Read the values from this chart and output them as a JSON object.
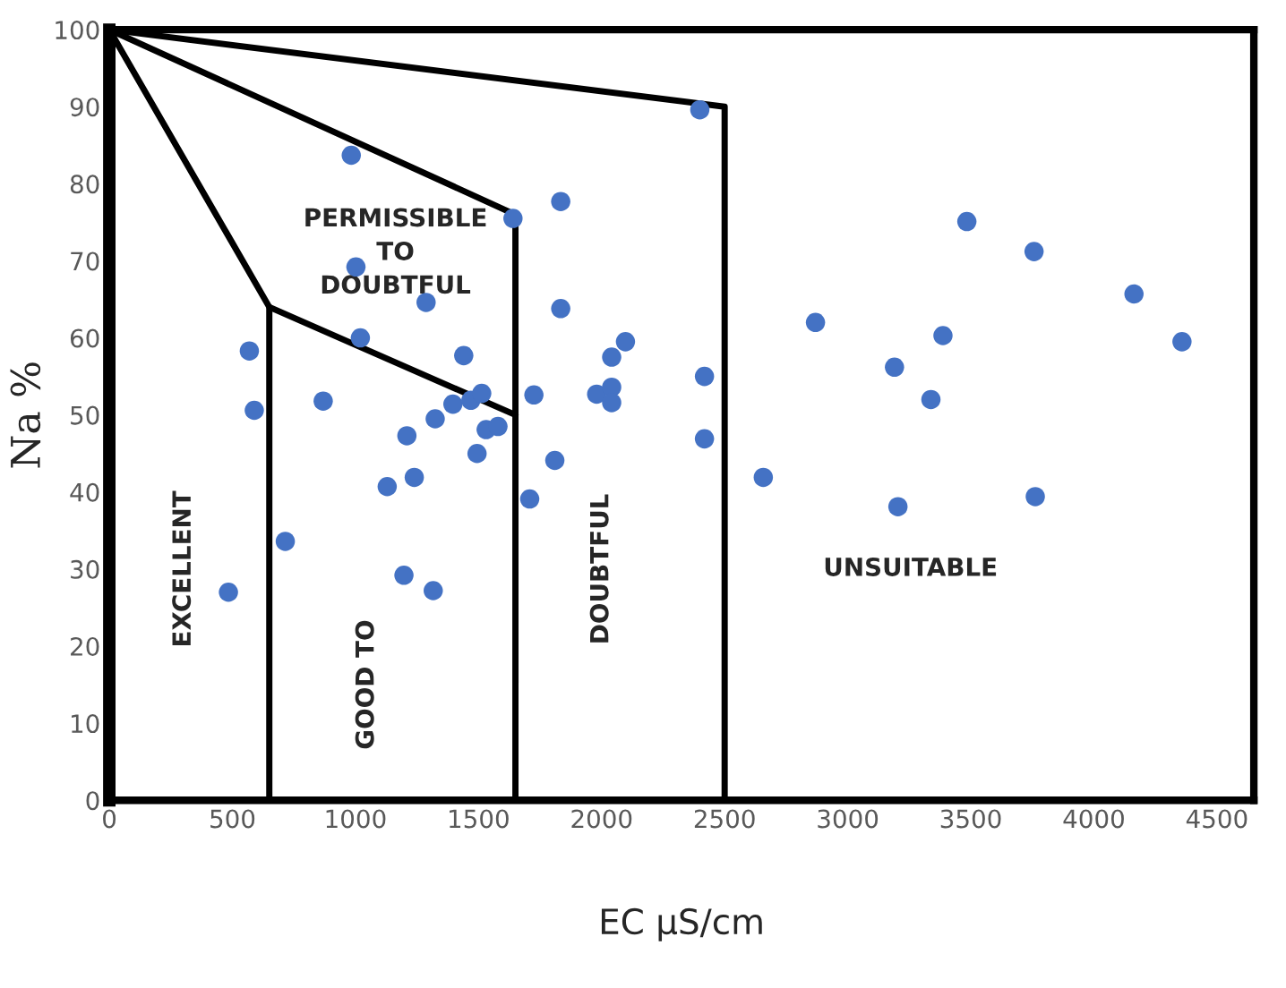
{
  "chart_data": {
    "type": "scatter",
    "xlabel": "EC µS/cm",
    "ylabel": "Na %",
    "xlim": [
      0,
      4650
    ],
    "ylim": [
      0,
      100
    ],
    "xticks": [
      0,
      500,
      1000,
      1500,
      2000,
      2500,
      3000,
      3500,
      4000,
      4500
    ],
    "yticks": [
      0,
      10,
      20,
      30,
      40,
      50,
      60,
      70,
      80,
      90,
      100
    ],
    "grid": false,
    "legend": false,
    "series": [
      {
        "color": "#4472c4",
        "marker": "circle",
        "x": [
          983,
          1640,
          1834,
          1002,
          1287,
          1834,
          1020,
          569,
          1440,
          2097,
          2041,
          589,
          869,
          1396,
          1469,
          1513,
          1725,
          1980,
          2041,
          2041,
          1324,
          1531,
          1579,
          1209,
          1494,
          1810,
          1129,
          1239,
          1708,
          715,
          484,
          1197,
          1316,
          2399,
          3484,
          3757,
          4163,
          2869,
          3387,
          4358,
          2418,
          3190,
          3338,
          2418,
          2657,
          3204,
          3762
        ],
        "values": [
          83.7,
          75.5,
          77.7,
          69.2,
          64.6,
          63.8,
          60.0,
          58.3,
          57.7,
          59.5,
          57.5,
          50.6,
          51.8,
          51.4,
          51.9,
          52.8,
          52.6,
          52.7,
          53.6,
          51.6,
          49.5,
          48.1,
          48.5,
          47.3,
          45.0,
          44.1,
          40.7,
          41.9,
          39.1,
          33.6,
          27.0,
          29.2,
          27.2,
          89.6,
          75.1,
          71.2,
          65.7,
          62.0,
          60.3,
          59.5,
          55.0,
          56.2,
          52.0,
          46.9,
          41.9,
          38.1,
          39.4
        ]
      },
      {
        "type": "line",
        "color": "#000000",
        "marker": "none",
        "x": [
          0,
          2500,
          2500
        ],
        "values": [
          100,
          90,
          0
        ]
      },
      {
        "type": "line",
        "color": "#000000",
        "marker": "none",
        "x": [
          0,
          1650,
          1650
        ],
        "values": [
          100,
          76,
          0
        ]
      },
      {
        "type": "line",
        "color": "#000000",
        "marker": "none",
        "x": [
          0,
          650,
          1650
        ],
        "values": [
          100,
          64,
          50
        ]
      },
      {
        "type": "line",
        "color": "#000000",
        "marker": "none",
        "x": [
          650,
          650
        ],
        "values": [
          64,
          0
        ]
      }
    ],
    "annotations": [
      "PERMISSIBLE\nTO\nDOUBTFUL",
      "EXCELLENT",
      "GOOD TO",
      "DOUBTFUL",
      "UNSUITABLE"
    ]
  }
}
